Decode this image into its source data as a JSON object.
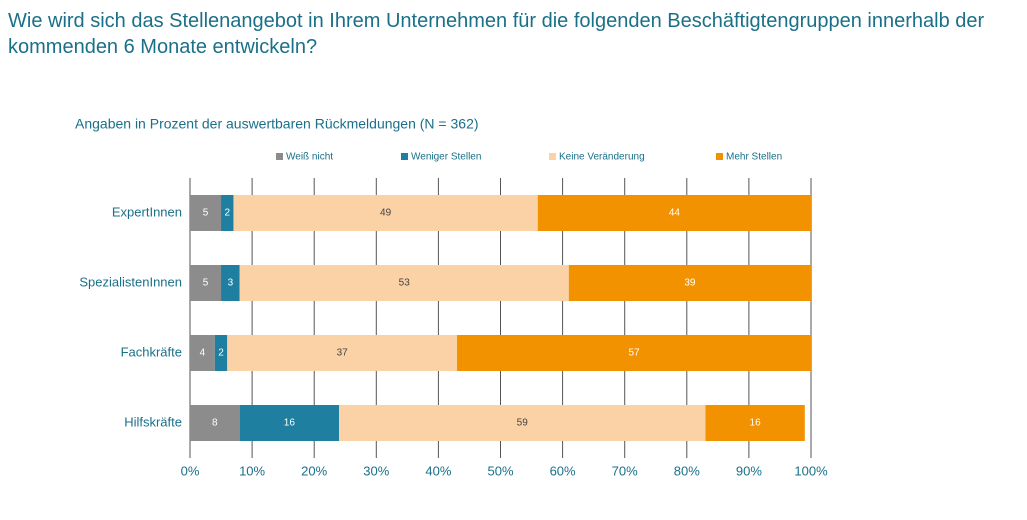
{
  "chart_data": {
    "type": "stacked-bar-horizontal",
    "title": "Wie wird sich das Stellenangebot in Ihrem Unternehmen für die folgenden Beschäftigtengruppen innerhalb der kommenden 6 Monate entwickeln?",
    "subtitle": "Angaben in Prozent der auswertbaren Rückmeldungen (N = 362)",
    "categories": [
      "ExpertInnen",
      "SpezialistenInnen",
      "Fachkräfte",
      "Hilfskräfte"
    ],
    "series": [
      {
        "name": "Weiß nicht",
        "color": "#8c8c8c",
        "values": [
          5,
          5,
          4,
          8
        ]
      },
      {
        "name": "Weniger Stellen",
        "color": "#1f7fa0",
        "values": [
          2,
          3,
          2,
          16
        ]
      },
      {
        "name": "Keine Veränderung",
        "color": "#fbd1a6",
        "values": [
          49,
          53,
          37,
          59
        ]
      },
      {
        "name": "Mehr Stellen",
        "color": "#f39200",
        "values": [
          44,
          39,
          57,
          16
        ]
      }
    ],
    "xlim": [
      0,
      100
    ],
    "xticks": [
      {
        "value": 0,
        "label": "0%"
      },
      {
        "value": 10,
        "label": "10%"
      },
      {
        "value": 20,
        "label": "20%"
      },
      {
        "value": 30,
        "label": "30%"
      },
      {
        "value": 40,
        "label": "40%"
      },
      {
        "value": 50,
        "label": "50%"
      },
      {
        "value": 60,
        "label": "60%"
      },
      {
        "value": 70,
        "label": "70%"
      },
      {
        "value": 80,
        "label": "80%"
      },
      {
        "value": 90,
        "label": "90%"
      },
      {
        "value": 100,
        "label": "100%"
      }
    ],
    "grid": true
  }
}
